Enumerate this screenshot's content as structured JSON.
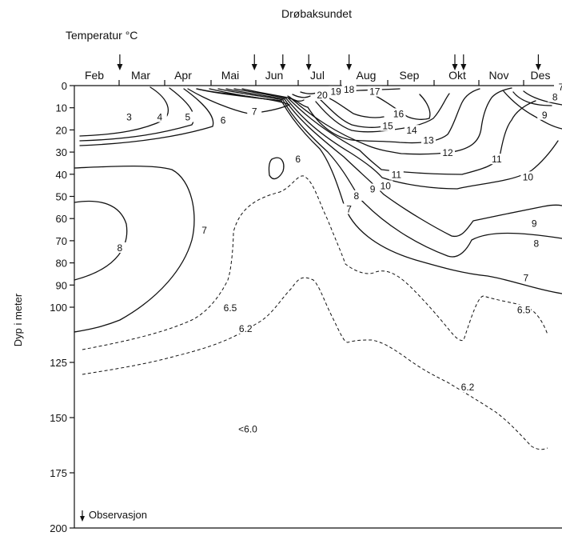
{
  "chart_data": {
    "type": "contour",
    "title": "Drøbaksundet",
    "unit_label": "Temperatur °C",
    "ylabel": "Dyp i meter",
    "months": [
      "Feb",
      "Mar",
      "Apr",
      "Mai",
      "Jun",
      "Jul",
      "Aug",
      "Sep",
      "Okt",
      "Nov",
      "Des"
    ],
    "y_ticks_upper": [
      0,
      10,
      20,
      30,
      40,
      50,
      60,
      70,
      80,
      90,
      100
    ],
    "y_ticks_lower": [
      125,
      150,
      175,
      200
    ],
    "ylim": [
      0,
      200
    ],
    "legend": "Observasjon",
    "observation_months": [
      0.55,
      3.55,
      4.2,
      4.8,
      5.65,
      7.95,
      8.15,
      9.95
    ],
    "contour_labels": [
      {
        "text": "3",
        "month": 0.75,
        "depth": 15
      },
      {
        "text": "4",
        "month": 1.45,
        "depth": 15
      },
      {
        "text": "5",
        "month": 2.1,
        "depth": 15
      },
      {
        "text": "6",
        "month": 2.85,
        "depth": 16.5
      },
      {
        "text": "7",
        "month": 3.55,
        "depth": 12.5
      },
      {
        "text": "6",
        "month": 4.55,
        "depth": 34
      },
      {
        "text": "20",
        "month": 5.1,
        "depth": 5
      },
      {
        "text": "19",
        "month": 5.38,
        "depth": 3.5
      },
      {
        "text": "18",
        "month": 5.65,
        "depth": 2.5
      },
      {
        "text": "17",
        "month": 6.2,
        "depth": 3.5
      },
      {
        "text": "16",
        "month": 6.75,
        "depth": 13.5
      },
      {
        "text": "15",
        "month": 6.5,
        "depth": 19
      },
      {
        "text": "14",
        "month": 7.05,
        "depth": 21
      },
      {
        "text": "13",
        "month": 7.4,
        "depth": 25.5
      },
      {
        "text": "12",
        "month": 7.8,
        "depth": 31
      },
      {
        "text": "11",
        "month": 6.7,
        "depth": 41
      },
      {
        "text": "10",
        "month": 6.45,
        "depth": 46
      },
      {
        "text": "9",
        "month": 6.15,
        "depth": 47.5
      },
      {
        "text": "8",
        "month": 5.8,
        "depth": 50.5
      },
      {
        "text": "7",
        "month": 5.65,
        "depth": 56.5
      },
      {
        "text": "11",
        "month": 8.95,
        "depth": 34
      },
      {
        "text": "10",
        "month": 9.7,
        "depth": 42
      },
      {
        "text": "9",
        "month": 9.85,
        "depth": 63
      },
      {
        "text": "8",
        "month": 9.9,
        "depth": 72
      },
      {
        "text": "7",
        "month": 9.65,
        "depth": 87.5
      },
      {
        "text": "8",
        "month": 0.55,
        "depth": 74
      },
      {
        "text": "7",
        "month": 2.45,
        "depth": 66
      },
      {
        "text": "9",
        "month": 10.1,
        "depth": 14
      },
      {
        "text": "8",
        "month": 10.35,
        "depth": 6
      },
      {
        "text": "7",
        "month": 10.5,
        "depth": 1.5
      },
      {
        "text": "6.5",
        "month": 3.0,
        "depth": 101
      },
      {
        "text": "6.2",
        "month": 3.35,
        "depth": 110.5
      },
      {
        "text": "6.5",
        "month": 9.6,
        "depth": 102
      },
      {
        "text": "6.2",
        "month": 8.25,
        "depth": 137
      },
      {
        "text": "<6.0",
        "month": 3.4,
        "depth": 156
      }
    ]
  }
}
